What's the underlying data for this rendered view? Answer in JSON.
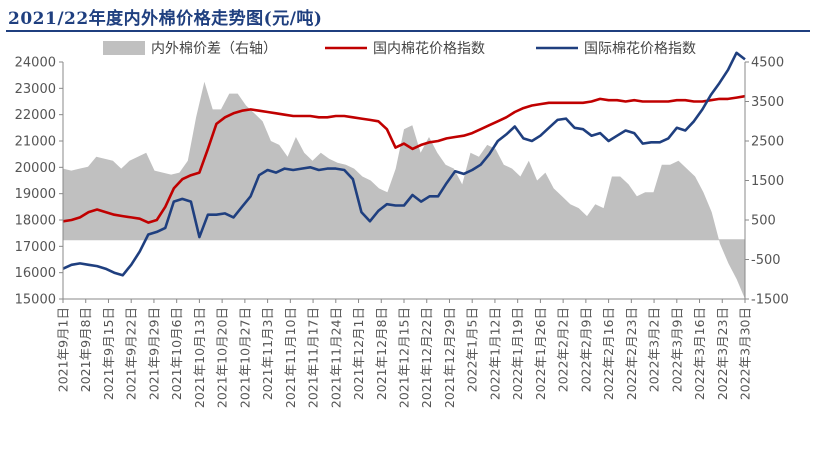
{
  "chart_data": {
    "type": "line",
    "title": "2021/22年度内外棉价格走势图(元/吨)",
    "left_axis": {
      "ylim": [
        15000,
        24000
      ],
      "ticks": [
        15000,
        16000,
        17000,
        18000,
        19000,
        20000,
        21000,
        22000,
        23000,
        24000
      ]
    },
    "right_axis": {
      "ylim": [
        -1500,
        4500
      ],
      "ticks": [
        -1500,
        -500,
        500,
        1500,
        2500,
        3500,
        4500
      ]
    },
    "x_labels": [
      "2021年9月1日",
      "2021年9月8日",
      "2021年9月15日",
      "2021年9月22日",
      "2021年9月29日",
      "2021年10月6日",
      "2021年10月13日",
      "2021年10月20日",
      "2021年10月27日",
      "2021年11月3日",
      "2021年11月10日",
      "2021年11月17日",
      "2021年11月24日",
      "2021年12月1日",
      "2021年12月8日",
      "2021年12月15日",
      "2021年12月22日",
      "2021年12月29日",
      "2022年1月5日",
      "2022年1月12日",
      "2022年1月19日",
      "2022年1月26日",
      "2022年2月2日",
      "2022年2月9日",
      "2022年2月16日",
      "2022年2月23日",
      "2022年3月2日",
      "2022年3月9日",
      "2022年3月16日",
      "2022年3月23日",
      "2022年3月30日"
    ],
    "legend_position": "top",
    "grid": false,
    "series": [
      {
        "name": "内外棉价差（右轴）",
        "axis": "right",
        "style": "area",
        "color": "#c0c0c0",
        "values": [
          1800,
          1750,
          1800,
          1850,
          2100,
          2050,
          2000,
          1800,
          2000,
          2100,
          2200,
          1750,
          1700,
          1650,
          1700,
          2000,
          3100,
          4000,
          3300,
          3300,
          3700,
          3700,
          3400,
          3200,
          3000,
          2500,
          2400,
          2100,
          2600,
          2200,
          2000,
          2200,
          2050,
          1950,
          1900,
          1800,
          1600,
          1500,
          1300,
          1200,
          1800,
          2800,
          2900,
          2200,
          2600,
          2200,
          1900,
          1800,
          1400,
          2200,
          2100,
          2400,
          2300,
          1900,
          1800,
          1600,
          2000,
          1500,
          1700,
          1300,
          1100,
          900,
          800,
          600,
          900,
          800,
          1600,
          1600,
          1400,
          1100,
          1200,
          1200,
          1900,
          1900,
          2000,
          1800,
          1600,
          1200,
          700,
          -100,
          -600,
          -1000,
          -1500
        ]
      },
      {
        "name": "国内棉花价格指数",
        "axis": "left",
        "style": "line",
        "color": "#c00000",
        "values": [
          17950,
          18000,
          18100,
          18300,
          18400,
          18300,
          18200,
          18150,
          18100,
          18050,
          17900,
          18000,
          18500,
          19200,
          19550,
          19700,
          19800,
          20700,
          21650,
          21900,
          22050,
          22150,
          22200,
          22150,
          22100,
          22050,
          22000,
          21950,
          21950,
          21950,
          21900,
          21900,
          21950,
          21950,
          21900,
          21850,
          21800,
          21750,
          21450,
          20750,
          20900,
          20700,
          20850,
          20950,
          21000,
          21100,
          21150,
          21200,
          21300,
          21450,
          21600,
          21750,
          21900,
          22100,
          22250,
          22350,
          22400,
          22450,
          22450,
          22450,
          22450,
          22450,
          22500,
          22600,
          22550,
          22550,
          22500,
          22550,
          22500,
          22500,
          22500,
          22500,
          22550,
          22550,
          22500,
          22500,
          22550,
          22600,
          22600,
          22650,
          22700
        ]
      },
      {
        "name": "国际棉花价格指数",
        "axis": "left",
        "style": "line",
        "color": "#1f3f7f",
        "values": [
          16150,
          16300,
          16350,
          16300,
          16250,
          16150,
          16000,
          15900,
          16300,
          16800,
          17450,
          17550,
          17700,
          18700,
          18800,
          18700,
          17350,
          18200,
          18200,
          18250,
          18100,
          18500,
          18900,
          19700,
          19900,
          19800,
          19950,
          19900,
          19950,
          20000,
          19900,
          19950,
          19950,
          19900,
          19550,
          18300,
          17950,
          18350,
          18600,
          18550,
          18550,
          18950,
          18700,
          18900,
          18900,
          19400,
          19850,
          19750,
          19900,
          20100,
          20500,
          21000,
          21250,
          21550,
          21100,
          21000,
          21200,
          21500,
          21800,
          21850,
          21500,
          21450,
          21200,
          21300,
          21000,
          21200,
          21400,
          21300,
          20900,
          20950,
          20950,
          21100,
          21500,
          21400,
          21750,
          22200,
          22750,
          23200,
          23700,
          24350,
          24100
        ]
      }
    ]
  }
}
